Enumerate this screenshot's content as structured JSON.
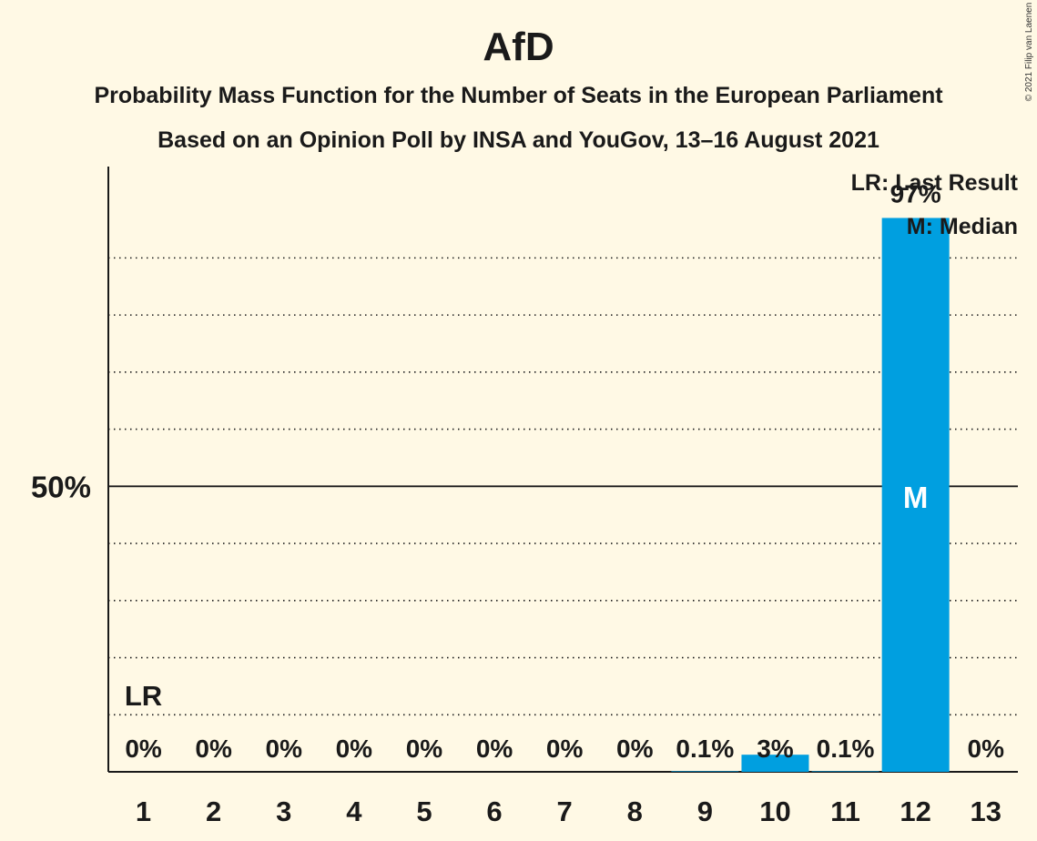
{
  "chart_data": {
    "type": "bar",
    "title": "AfD",
    "subtitle": "Probability Mass Function for the Number of Seats in the European Parliament",
    "source": "Based on an Opinion Poll by INSA and YouGov, 13–16 August 2021",
    "copyright": "© 2021 Filip van Laenen",
    "categories": [
      "1",
      "2",
      "3",
      "4",
      "5",
      "6",
      "7",
      "8",
      "9",
      "10",
      "11",
      "12",
      "13"
    ],
    "values": [
      0,
      0,
      0,
      0,
      0,
      0,
      0,
      0,
      0.1,
      3,
      0.1,
      97,
      0
    ],
    "value_labels": [
      "0%",
      "0%",
      "0%",
      "0%",
      "0%",
      "0%",
      "0%",
      "0%",
      "0.1%",
      "3%",
      "0.1%",
      "97%",
      "0%"
    ],
    "ylim": [
      0,
      106
    ],
    "y_ticks": [
      {
        "value": 50,
        "label": "50%"
      }
    ],
    "gridlines": [
      10,
      20,
      30,
      40,
      60,
      70,
      80,
      90
    ],
    "bar_color": "#009fe0",
    "last_result": {
      "category": "1",
      "label": "LR"
    },
    "median": {
      "category": "12",
      "label": "M"
    },
    "legend": {
      "position": "top-right",
      "entries": [
        "LR: Last Result",
        "M: Median"
      ]
    }
  }
}
